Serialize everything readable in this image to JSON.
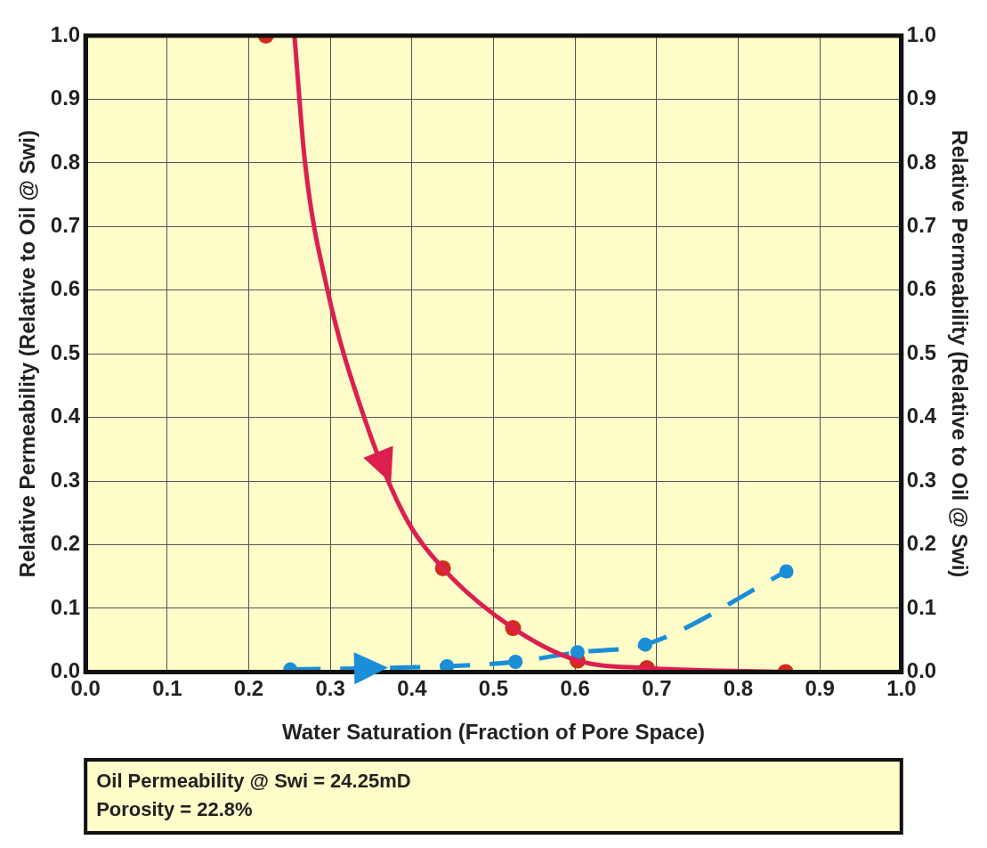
{
  "chart_data": {
    "type": "scatter",
    "xlabel": "Water Saturation (Fraction of Pore Space)",
    "ylabel": "Relative Permeability (Relative to Oil @ Swi)",
    "y2label": "Relative Permeability (Relative to Oil @ Swi)",
    "xlim": [
      0,
      1
    ],
    "xticks": [
      {
        "value": 0,
        "label": "0.0"
      },
      0.1,
      0.2,
      0.3,
      0.4,
      0.5,
      0.6,
      0.7,
      0.8,
      0.9,
      {
        "value": 1,
        "label": "1.0"
      }
    ],
    "ylim": [
      0,
      1
    ],
    "yticks": [
      {
        "value": 0,
        "label": "0.0"
      },
      0.1,
      0.2,
      0.3,
      0.4,
      0.5,
      0.6,
      0.7,
      0.8,
      0.9,
      {
        "value": 1,
        "label": "1.0"
      }
    ],
    "y2lim": [
      0,
      1
    ],
    "y2ticks": [
      {
        "value": 0,
        "label": "0.0"
      },
      0.1,
      0.2,
      0.3,
      0.4,
      0.5,
      0.6,
      0.7,
      0.8,
      0.9,
      {
        "value": 1,
        "label": "1.0"
      }
    ],
    "grid": true,
    "legend": false,
    "series": [
      {
        "type": "line",
        "marker": "none",
        "line_style": "solid",
        "color": "#dc1f4f",
        "x": [
          0.256,
          0.269,
          0.296,
          0.341,
          0.39,
          0.438,
          0.524,
          0.603,
          0.688,
          0.78,
          0.858
        ],
        "values": [
          1.0,
          0.8,
          0.603,
          0.402,
          0.248,
          0.163,
          0.069,
          0.018,
          0.006,
          0.002,
          0.0
        ]
      },
      {
        "type": "line",
        "marker": "circle",
        "line_style": "dashed",
        "color": "#1a8fd8",
        "x": [
          0.251,
          0.443,
          0.527,
          0.603,
          0.686,
          0.859
        ],
        "values": [
          0.004,
          0.009,
          0.016,
          0.031,
          0.043,
          0.158
        ]
      },
      {
        "type": "scatter",
        "marker": "circle",
        "color": "#d42a1c",
        "x": [
          0.221,
          0.438,
          0.524,
          0.603,
          0.688,
          0.858
        ],
        "values": [
          1.0,
          0.163,
          0.069,
          0.018,
          0.006,
          0.0
        ]
      }
    ],
    "annotations": [
      "Oil Permeability @ Swi = 24.25mD",
      "Porosity = 22.8%"
    ]
  }
}
